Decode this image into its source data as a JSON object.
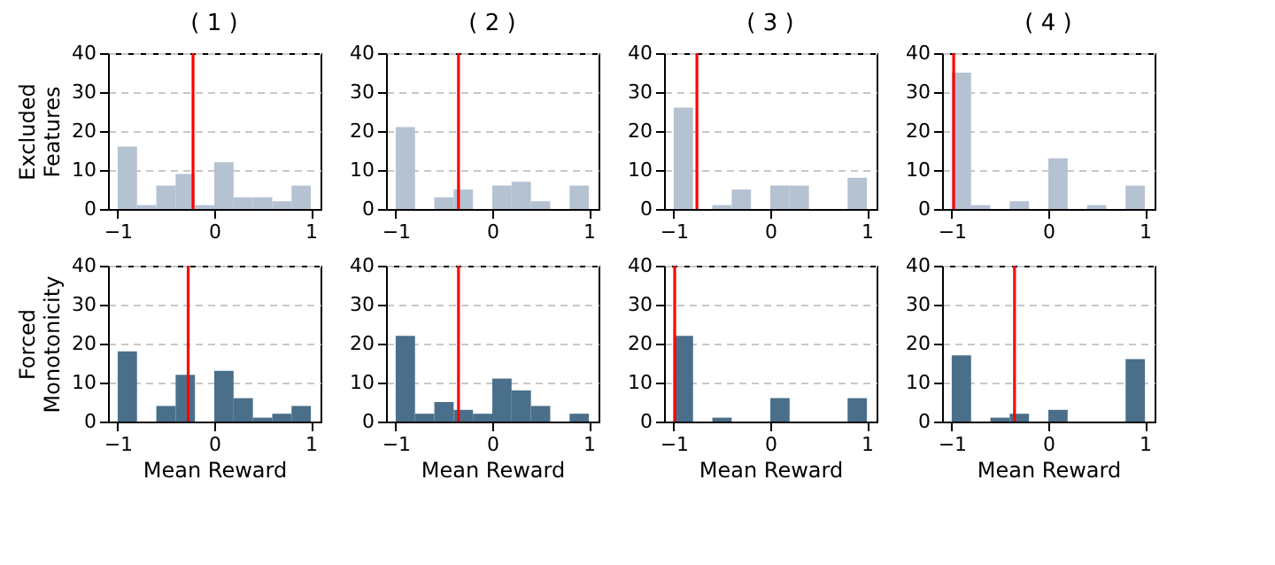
{
  "chart_data": [
    {
      "type": "histogram",
      "title": "( 1 )",
      "ylabel": "Excluded Features",
      "color": "#b4c2d2",
      "bins": [
        -1,
        -0.8,
        -0.6,
        -0.4,
        -0.2,
        0,
        0.2,
        0.4,
        0.6,
        0.8,
        1
      ],
      "values": [
        16,
        1,
        6,
        9,
        1,
        12,
        3,
        3,
        2,
        6
      ],
      "xlim": [
        -1.1,
        1.1
      ],
      "xticks": [
        -1,
        0,
        1
      ],
      "ylim": [
        0,
        40
      ],
      "yticks": [
        0,
        10,
        20,
        30,
        40
      ],
      "grid": "y",
      "ref_lines": [
        {
          "axis": "x",
          "value": -0.22,
          "color": "#ff0000"
        }
      ]
    },
    {
      "type": "histogram",
      "title": "( 2 )",
      "color": "#b4c2d2",
      "bins": [
        -1,
        -0.8,
        -0.6,
        -0.4,
        -0.2,
        0,
        0.2,
        0.4,
        0.6,
        0.8,
        1
      ],
      "values": [
        21,
        0,
        3,
        5,
        0,
        6,
        7,
        2,
        0,
        6
      ],
      "xlim": [
        -1.1,
        1.1
      ],
      "xticks": [
        -1,
        0,
        1
      ],
      "ylim": [
        0,
        40
      ],
      "yticks": [
        0,
        10,
        20,
        30,
        40
      ],
      "grid": "y",
      "ref_lines": [
        {
          "axis": "x",
          "value": -0.35,
          "color": "#ff0000"
        }
      ]
    },
    {
      "type": "histogram",
      "title": "( 3 )",
      "color": "#b4c2d2",
      "bins": [
        -1,
        -0.8,
        -0.6,
        -0.4,
        -0.2,
        0,
        0.2,
        0.4,
        0.6,
        0.8,
        1
      ],
      "values": [
        26,
        0,
        1,
        5,
        0,
        6,
        6,
        0,
        0,
        8
      ],
      "xlim": [
        -1.1,
        1.1
      ],
      "xticks": [
        -1,
        0,
        1
      ],
      "ylim": [
        0,
        40
      ],
      "yticks": [
        0,
        10,
        20,
        30,
        40
      ],
      "grid": "y",
      "ref_lines": [
        {
          "axis": "x",
          "value": -0.76,
          "color": "#ff0000"
        }
      ]
    },
    {
      "type": "histogram",
      "title": "( 4 )",
      "color": "#b4c2d2",
      "bins": [
        -1,
        -0.8,
        -0.6,
        -0.4,
        -0.2,
        0,
        0.2,
        0.4,
        0.6,
        0.8,
        1
      ],
      "values": [
        35,
        1,
        0,
        2,
        0,
        13,
        0,
        1,
        0,
        6
      ],
      "xlim": [
        -1.1,
        1.1
      ],
      "xticks": [
        -1,
        0,
        1
      ],
      "ylim": [
        0,
        40
      ],
      "yticks": [
        0,
        10,
        20,
        30,
        40
      ],
      "grid": "y",
      "ref_lines": [
        {
          "axis": "x",
          "value": -0.98,
          "color": "#ff0000"
        }
      ]
    },
    {
      "type": "histogram",
      "ylabel": "Forced Monotonicity",
      "xlabel": "Mean Reward",
      "color": "#4a6f8a",
      "bins": [
        -1,
        -0.8,
        -0.6,
        -0.4,
        -0.2,
        0,
        0.2,
        0.4,
        0.6,
        0.8,
        1
      ],
      "values": [
        18,
        0,
        4,
        12,
        0,
        13,
        6,
        1,
        2,
        4
      ],
      "xlim": [
        -1.1,
        1.1
      ],
      "xticks": [
        -1,
        0,
        1
      ],
      "ylim": [
        0,
        40
      ],
      "yticks": [
        0,
        10,
        20,
        30,
        40
      ],
      "grid": "y",
      "ref_lines": [
        {
          "axis": "x",
          "value": -0.27,
          "color": "#ff0000"
        }
      ]
    },
    {
      "type": "histogram",
      "xlabel": "Mean Reward",
      "color": "#4a6f8a",
      "bins": [
        -1,
        -0.8,
        -0.6,
        -0.4,
        -0.2,
        0,
        0.2,
        0.4,
        0.6,
        0.8,
        1
      ],
      "values": [
        22,
        2,
        5,
        3,
        2,
        11,
        8,
        4,
        0,
        2
      ],
      "xlim": [
        -1.1,
        1.1
      ],
      "xticks": [
        -1,
        0,
        1
      ],
      "ylim": [
        0,
        40
      ],
      "yticks": [
        0,
        10,
        20,
        30,
        40
      ],
      "grid": "y",
      "ref_lines": [
        {
          "axis": "x",
          "value": -0.35,
          "color": "#ff0000"
        }
      ]
    },
    {
      "type": "histogram",
      "xlabel": "Mean Reward",
      "color": "#4a6f8a",
      "bins": [
        -1,
        -0.8,
        -0.6,
        -0.4,
        -0.2,
        0,
        0.2,
        0.4,
        0.6,
        0.8,
        1
      ],
      "values": [
        22,
        0,
        1,
        0,
        0,
        6,
        0,
        0,
        0,
        6
      ],
      "xlim": [
        -1.1,
        1.1
      ],
      "xticks": [
        -1,
        0,
        1
      ],
      "ylim": [
        0,
        40
      ],
      "yticks": [
        0,
        10,
        20,
        30,
        40
      ],
      "grid": "y",
      "ref_lines": [
        {
          "axis": "x",
          "value": -0.99,
          "color": "#ff0000"
        }
      ]
    },
    {
      "type": "histogram",
      "xlabel": "Mean Reward",
      "color": "#4a6f8a",
      "bins": [
        -1,
        -0.8,
        -0.6,
        -0.4,
        -0.2,
        0,
        0.2,
        0.4,
        0.6,
        0.8,
        1
      ],
      "values": [
        17,
        0,
        1,
        2,
        0,
        3,
        0,
        0,
        0,
        16
      ],
      "xlim": [
        -1.1,
        1.1
      ],
      "xticks": [
        -1,
        0,
        1
      ],
      "ylim": [
        0,
        40
      ],
      "yticks": [
        0,
        10,
        20,
        30,
        40
      ],
      "grid": "y",
      "ref_lines": [
        {
          "axis": "x",
          "value": -0.35,
          "color": "#ff0000"
        }
      ]
    }
  ]
}
